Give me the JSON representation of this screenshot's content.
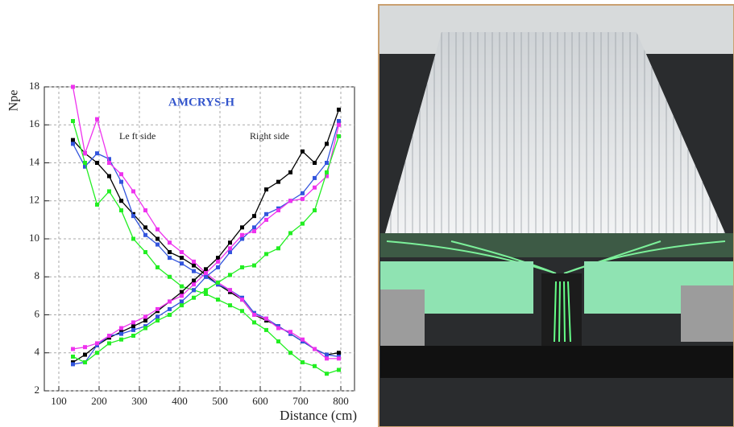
{
  "chart_data": {
    "type": "line",
    "title": "AMCRYS-H",
    "xlabel": "Distance (cm)",
    "ylabel": "Npe",
    "annotations": [
      "Le ft side",
      "Right side"
    ],
    "x": [
      135,
      165,
      195,
      225,
      255,
      285,
      315,
      345,
      375,
      405,
      435,
      465,
      495,
      525,
      555,
      585,
      615,
      645,
      675,
      705,
      735,
      765,
      795
    ],
    "xlim": [
      64,
      834
    ],
    "ylim": [
      2,
      18
    ],
    "xticks": [
      100,
      200,
      300,
      400,
      500,
      600,
      700,
      800
    ],
    "yticks": [
      2,
      4,
      6,
      8,
      10,
      12,
      14,
      16,
      18
    ],
    "grid": true,
    "series": [
      {
        "color": "#000000",
        "values": [
          15.2,
          14.5,
          14.0,
          13.3,
          12.0,
          11.3,
          10.6,
          10.0,
          9.3,
          9.0,
          8.6,
          8.1,
          7.6,
          7.2,
          6.8,
          6.0,
          5.7,
          5.4,
          5.0,
          4.6,
          4.2,
          3.9,
          4.0
        ]
      },
      {
        "color": "#3355dd",
        "values": [
          15.0,
          13.8,
          14.5,
          14.2,
          13.0,
          11.2,
          10.2,
          9.7,
          9.0,
          8.7,
          8.3,
          8.0,
          7.6,
          7.3,
          6.9,
          6.1,
          5.8,
          5.4,
          5.0,
          4.6,
          4.2,
          3.9,
          3.8
        ]
      },
      {
        "color": "#ee33ee",
        "values": [
          18.0,
          14.5,
          16.3,
          14.0,
          13.4,
          12.5,
          11.5,
          10.5,
          9.8,
          9.3,
          8.8,
          8.2,
          7.7,
          7.3,
          6.8,
          6.0,
          5.8,
          5.3,
          5.1,
          4.7,
          4.2,
          3.7,
          3.7
        ]
      },
      {
        "color": "#22ee22",
        "values": [
          16.2,
          14.0,
          11.8,
          12.5,
          11.5,
          10.0,
          9.3,
          8.5,
          8.0,
          7.5,
          7.3,
          7.1,
          6.8,
          6.5,
          6.2,
          5.6,
          5.2,
          4.6,
          4.0,
          3.5,
          3.3,
          2.9,
          3.1
        ]
      },
      {
        "color": "#000000",
        "values": [
          3.5,
          3.9,
          4.4,
          4.8,
          5.1,
          5.4,
          5.7,
          6.2,
          6.7,
          7.2,
          7.8,
          8.4,
          9.0,
          9.8,
          10.6,
          11.2,
          12.6,
          13.0,
          13.5,
          14.6,
          14.0,
          15.0,
          16.8
        ]
      },
      {
        "color": "#3355dd",
        "values": [
          3.4,
          3.5,
          4.4,
          4.9,
          5.0,
          5.2,
          5.4,
          5.9,
          6.3,
          6.7,
          7.3,
          8.0,
          8.5,
          9.3,
          10.0,
          10.6,
          11.3,
          11.6,
          12.0,
          12.4,
          13.2,
          14.0,
          16.2
        ]
      },
      {
        "color": "#ee33ee",
        "values": [
          4.2,
          4.3,
          4.5,
          4.9,
          5.3,
          5.6,
          5.9,
          6.3,
          6.7,
          7.0,
          7.6,
          8.2,
          8.8,
          9.5,
          10.2,
          10.4,
          11.0,
          11.5,
          12.0,
          12.1,
          12.7,
          13.3,
          16.0
        ]
      },
      {
        "color": "#22ee22",
        "values": [
          3.8,
          3.5,
          4.0,
          4.5,
          4.7,
          4.9,
          5.3,
          5.7,
          6.0,
          6.5,
          6.9,
          7.3,
          7.7,
          8.1,
          8.5,
          8.6,
          9.2,
          9.5,
          10.3,
          10.8,
          11.5,
          13.5,
          15.4
        ]
      }
    ]
  }
}
